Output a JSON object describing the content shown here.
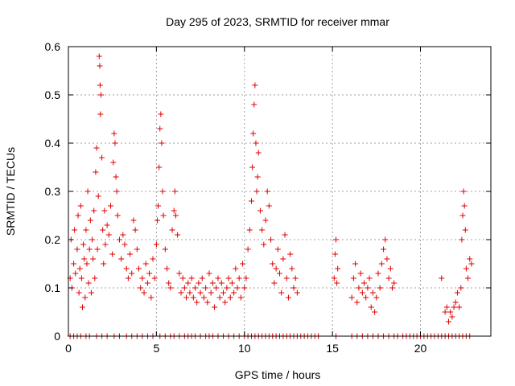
{
  "chart_data": {
    "type": "scatter",
    "title": "Day 295 of 2023, SRMTID for receiver mmar",
    "xlabel": "GPS time / hours",
    "ylabel": "SRMTID / TECUs",
    "xlim": [
      0,
      24
    ],
    "ylim": [
      0,
      0.6
    ],
    "x_ticks": [
      0,
      5,
      10,
      15,
      20
    ],
    "x_tick_labels": [
      "0",
      "5",
      "10",
      "15",
      "20"
    ],
    "y_ticks": [
      0,
      0.1,
      0.2,
      0.3,
      0.4,
      0.5,
      0.6
    ],
    "y_tick_labels": [
      "0",
      "0.1",
      "0.2",
      "0.3",
      "0.4",
      "0.5",
      "0.6"
    ],
    "grid": true,
    "marker": "+",
    "series": [
      {
        "name": "SRMTID",
        "color": "#e00000",
        "points": [
          [
            0.1,
            0.12
          ],
          [
            0.15,
            0.2
          ],
          [
            0.2,
            0.1
          ],
          [
            0.3,
            0.15
          ],
          [
            0.35,
            0.22
          ],
          [
            0.4,
            0.13
          ],
          [
            0.5,
            0.18
          ],
          [
            0.55,
            0.25
          ],
          [
            0.6,
            0.09
          ],
          [
            0.65,
            0.14
          ],
          [
            0.7,
            0.27
          ],
          [
            0.75,
            0.12
          ],
          [
            0.8,
            0.06
          ],
          [
            0.85,
            0.19
          ],
          [
            0.9,
            0.16
          ],
          [
            0.95,
            0.08
          ],
          [
            1.0,
            0.22
          ],
          [
            1.05,
            0.15
          ],
          [
            1.1,
            0.3
          ],
          [
            1.15,
            0.11
          ],
          [
            1.2,
            0.18
          ],
          [
            1.25,
            0.24
          ],
          [
            1.3,
            0.09
          ],
          [
            1.35,
            0.2
          ],
          [
            1.4,
            0.16
          ],
          [
            1.45,
            0.26
          ],
          [
            1.5,
            0.12
          ],
          [
            1.55,
            0.34
          ],
          [
            1.6,
            0.39
          ],
          [
            1.65,
            0.18
          ],
          [
            1.7,
            0.29
          ],
          [
            1.75,
            0.58
          ],
          [
            1.78,
            0.56
          ],
          [
            1.8,
            0.52
          ],
          [
            1.82,
            0.46
          ],
          [
            1.85,
            0.5
          ],
          [
            1.9,
            0.37
          ],
          [
            1.95,
            0.22
          ],
          [
            2.0,
            0.15
          ],
          [
            2.05,
            0.26
          ],
          [
            2.1,
            0.19
          ],
          [
            2.2,
            0.23
          ],
          [
            2.3,
            0.21
          ],
          [
            2.4,
            0.27
          ],
          [
            2.5,
            0.17
          ],
          [
            2.55,
            0.36
          ],
          [
            2.6,
            0.42
          ],
          [
            2.65,
            0.4
          ],
          [
            2.7,
            0.33
          ],
          [
            2.75,
            0.3
          ],
          [
            2.8,
            0.25
          ],
          [
            2.9,
            0.2
          ],
          [
            3.0,
            0.16
          ],
          [
            3.1,
            0.21
          ],
          [
            3.2,
            0.19
          ],
          [
            3.3,
            0.14
          ],
          [
            3.4,
            0.12
          ],
          [
            3.5,
            0.17
          ],
          [
            3.6,
            0.13
          ],
          [
            3.7,
            0.24
          ],
          [
            3.8,
            0.22
          ],
          [
            3.9,
            0.18
          ],
          [
            4.0,
            0.14
          ],
          [
            4.1,
            0.1
          ],
          [
            4.2,
            0.12
          ],
          [
            4.3,
            0.09
          ],
          [
            4.4,
            0.15
          ],
          [
            4.5,
            0.11
          ],
          [
            4.6,
            0.13
          ],
          [
            4.7,
            0.08
          ],
          [
            4.8,
            0.16
          ],
          [
            4.9,
            0.12
          ],
          [
            5.0,
            0.19
          ],
          [
            5.05,
            0.24
          ],
          [
            5.1,
            0.27
          ],
          [
            5.15,
            0.35
          ],
          [
            5.2,
            0.43
          ],
          [
            5.25,
            0.46
          ],
          [
            5.3,
            0.4
          ],
          [
            5.35,
            0.3
          ],
          [
            5.4,
            0.25
          ],
          [
            5.5,
            0.18
          ],
          [
            5.6,
            0.14
          ],
          [
            5.7,
            0.11
          ],
          [
            5.8,
            0.1
          ],
          [
            5.9,
            0.22
          ],
          [
            6.0,
            0.26
          ],
          [
            6.05,
            0.3
          ],
          [
            6.1,
            0.25
          ],
          [
            6.2,
            0.21
          ],
          [
            6.3,
            0.13
          ],
          [
            6.4,
            0.09
          ],
          [
            6.5,
            0.12
          ],
          [
            6.6,
            0.1
          ],
          [
            6.7,
            0.08
          ],
          [
            6.8,
            0.11
          ],
          [
            6.9,
            0.09
          ],
          [
            7.0,
            0.12
          ],
          [
            7.1,
            0.08
          ],
          [
            7.2,
            0.1
          ],
          [
            7.3,
            0.07
          ],
          [
            7.4,
            0.11
          ],
          [
            7.5,
            0.09
          ],
          [
            7.6,
            0.12
          ],
          [
            7.7,
            0.08
          ],
          [
            7.8,
            0.1
          ],
          [
            7.9,
            0.07
          ],
          [
            8.0,
            0.13
          ],
          [
            8.1,
            0.09
          ],
          [
            8.2,
            0.11
          ],
          [
            8.3,
            0.06
          ],
          [
            8.4,
            0.1
          ],
          [
            8.5,
            0.12
          ],
          [
            8.6,
            0.08
          ],
          [
            8.7,
            0.11
          ],
          [
            8.8,
            0.09
          ],
          [
            8.9,
            0.07
          ],
          [
            9.0,
            0.1
          ],
          [
            9.1,
            0.12
          ],
          [
            9.2,
            0.08
          ],
          [
            9.3,
            0.11
          ],
          [
            9.4,
            0.09
          ],
          [
            9.5,
            0.14
          ],
          [
            9.6,
            0.1
          ],
          [
            9.7,
            0.12
          ],
          [
            9.8,
            0.08
          ],
          [
            9.9,
            0.15
          ],
          [
            10.0,
            0.1
          ],
          [
            10.1,
            0.12
          ],
          [
            10.2,
            0.18
          ],
          [
            10.3,
            0.22
          ],
          [
            10.4,
            0.28
          ],
          [
            10.45,
            0.35
          ],
          [
            10.5,
            0.42
          ],
          [
            10.55,
            0.48
          ],
          [
            10.6,
            0.52
          ],
          [
            10.65,
            0.4
          ],
          [
            10.7,
            0.3
          ],
          [
            10.75,
            0.33
          ],
          [
            10.8,
            0.38
          ],
          [
            10.9,
            0.26
          ],
          [
            11.0,
            0.22
          ],
          [
            11.1,
            0.19
          ],
          [
            11.2,
            0.24
          ],
          [
            11.3,
            0.3
          ],
          [
            11.4,
            0.27
          ],
          [
            11.5,
            0.2
          ],
          [
            11.6,
            0.15
          ],
          [
            11.7,
            0.11
          ],
          [
            11.8,
            0.14
          ],
          [
            11.9,
            0.18
          ],
          [
            12.0,
            0.13
          ],
          [
            12.1,
            0.09
          ],
          [
            12.2,
            0.16
          ],
          [
            12.3,
            0.21
          ],
          [
            12.4,
            0.12
          ],
          [
            12.5,
            0.08
          ],
          [
            12.6,
            0.17
          ],
          [
            12.7,
            0.14
          ],
          [
            12.8,
            0.1
          ],
          [
            12.9,
            0.12
          ],
          [
            13.0,
            0.09
          ],
          [
            15.1,
            0.12
          ],
          [
            15.15,
            0.17
          ],
          [
            15.2,
            0.2
          ],
          [
            15.25,
            0.11
          ],
          [
            15.3,
            0.14
          ],
          [
            16.1,
            0.08
          ],
          [
            16.2,
            0.12
          ],
          [
            16.3,
            0.15
          ],
          [
            16.4,
            0.07
          ],
          [
            16.5,
            0.1
          ],
          [
            16.6,
            0.13
          ],
          [
            16.7,
            0.09
          ],
          [
            16.8,
            0.11
          ],
          [
            16.9,
            0.08
          ],
          [
            17.0,
            0.1
          ],
          [
            17.1,
            0.12
          ],
          [
            17.2,
            0.06
          ],
          [
            17.3,
            0.09
          ],
          [
            17.4,
            0.05
          ],
          [
            17.5,
            0.08
          ],
          [
            17.6,
            0.13
          ],
          [
            17.7,
            0.1
          ],
          [
            17.8,
            0.15
          ],
          [
            17.9,
            0.18
          ],
          [
            18.0,
            0.2
          ],
          [
            18.1,
            0.16
          ],
          [
            18.2,
            0.12
          ],
          [
            18.3,
            0.14
          ],
          [
            18.4,
            0.1
          ],
          [
            18.5,
            0.11
          ],
          [
            21.2,
            0.12
          ],
          [
            21.4,
            0.05
          ],
          [
            21.5,
            0.06
          ],
          [
            21.6,
            0.03
          ],
          [
            21.7,
            0.05
          ],
          [
            21.8,
            0.04
          ],
          [
            21.9,
            0.06
          ],
          [
            22.0,
            0.07
          ],
          [
            22.1,
            0.09
          ],
          [
            22.2,
            0.06
          ],
          [
            22.3,
            0.1
          ],
          [
            22.35,
            0.2
          ],
          [
            22.4,
            0.25
          ],
          [
            22.45,
            0.3
          ],
          [
            22.5,
            0.27
          ],
          [
            22.55,
            0.22
          ],
          [
            22.6,
            0.14
          ],
          [
            22.7,
            0.12
          ],
          [
            22.8,
            0.16
          ],
          [
            22.9,
            0.15
          ]
        ],
        "zero_points": [
          0.1,
          0.3,
          0.5,
          0.7,
          1.0,
          1.2,
          1.6,
          1.9,
          2.2,
          2.6,
          2.9,
          3.3,
          3.6,
          3.9,
          4.2,
          4.5,
          4.8,
          5.2,
          5.5,
          5.8,
          6.0,
          6.3,
          6.6,
          6.8,
          7.0,
          7.2,
          7.5,
          7.8,
          8.0,
          8.2,
          8.5,
          8.8,
          9.1,
          9.4,
          9.7,
          10.0,
          10.2,
          10.4,
          10.6,
          10.8,
          11.0,
          11.2,
          11.4,
          11.6,
          11.8,
          12.0,
          12.2,
          12.4,
          12.6,
          12.8,
          13.0,
          13.2,
          13.4,
          13.6,
          13.8,
          14.0,
          14.2,
          15.2,
          16.1,
          16.4,
          16.7,
          17.0,
          17.3,
          17.6,
          17.9,
          18.2,
          18.5,
          18.7,
          19.0,
          19.2,
          19.4,
          19.6,
          19.8,
          20.0,
          20.2,
          20.4,
          20.6,
          20.8,
          21.0,
          21.2,
          21.4,
          21.6,
          21.8,
          22.0,
          22.2,
          22.4,
          22.6,
          22.8
        ]
      }
    ]
  }
}
